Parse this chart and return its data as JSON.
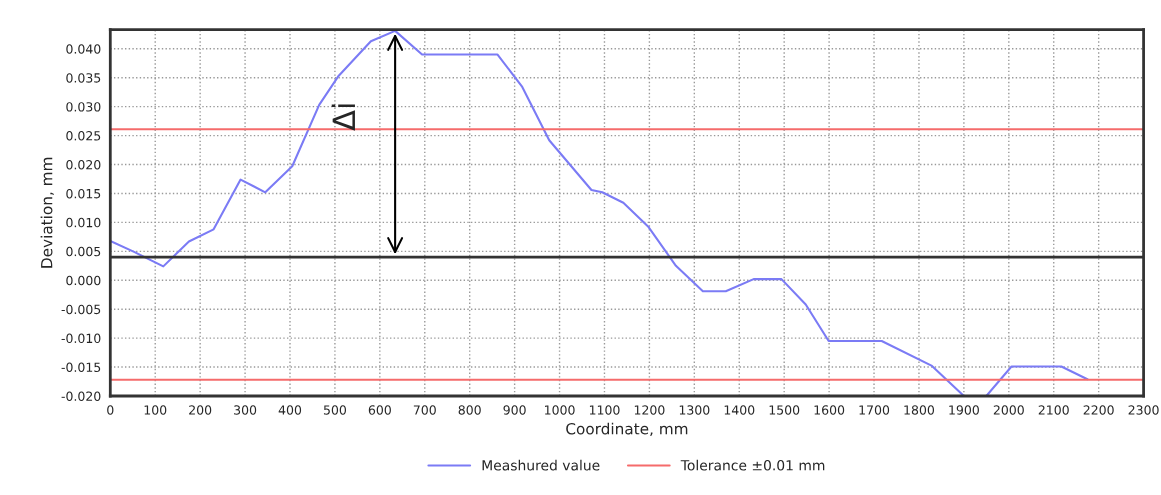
{
  "chart_data": {
    "type": "line",
    "xlabel": "Coordinate, mm",
    "ylabel": "Deviation, mm",
    "x": [
      0,
      53,
      118,
      175,
      230,
      290,
      345,
      405,
      465,
      507,
      580,
      634,
      694,
      862,
      917,
      977,
      1071,
      1095,
      1142,
      1197,
      1259,
      1319,
      1370,
      1432,
      1494,
      1548,
      1599,
      1717,
      1829,
      1900,
      1950,
      2006,
      2117,
      2175
    ],
    "series": [
      {
        "name": "Meashured value",
        "color": "#7b7bf5",
        "values": [
          0.0068,
          0.0049,
          0.0024,
          0.0067,
          0.0088,
          0.0174,
          0.0152,
          0.0197,
          0.0303,
          0.0352,
          0.0413,
          0.0431,
          0.039,
          0.039,
          0.0334,
          0.0242,
          0.0156,
          0.0152,
          0.0134,
          0.0093,
          0.0025,
          -0.0019,
          -0.0019,
          0.0002,
          0.0002,
          -0.0042,
          -0.0105,
          -0.0105,
          -0.0148,
          -0.02,
          -0.02,
          -0.0149,
          -0.0149,
          -0.0171
        ]
      }
    ],
    "xlim": [
      0,
      2300
    ],
    "ylim": [
      -0.02,
      0.0433
    ],
    "xticks": [
      0,
      100,
      200,
      300,
      400,
      500,
      600,
      700,
      800,
      900,
      1000,
      1100,
      1200,
      1300,
      1400,
      1500,
      1600,
      1700,
      1800,
      1900,
      2000,
      2100,
      2200,
      2300
    ],
    "yticks": [
      {
        "value": -0.02,
        "label": "-0.020"
      },
      {
        "value": -0.015,
        "label": "-0.015"
      },
      {
        "value": -0.01,
        "label": "-0.010"
      },
      {
        "value": -0.005,
        "label": "-0.005"
      },
      {
        "value": 0,
        "label": "0.000"
      },
      {
        "value": 0.005,
        "label": "0.005"
      },
      {
        "value": 0.01,
        "label": "0.010"
      },
      {
        "value": 0.015,
        "label": "0.015"
      },
      {
        "value": 0.02,
        "label": "0.020"
      },
      {
        "value": 0.025,
        "label": "0.025"
      },
      {
        "value": 0.03,
        "label": "0.030"
      },
      {
        "value": 0.035,
        "label": "0.035"
      },
      {
        "value": 0.04,
        "label": "0.040"
      }
    ],
    "ref_lines": [
      {
        "axis": "y",
        "value": 0.004,
        "color": "#333333",
        "line_style": "solid"
      },
      {
        "axis": "y",
        "value": 0.0261,
        "color": "#f56b6b",
        "line_style": "solid",
        "label": "Tolerance ±0.01 mm"
      },
      {
        "axis": "y",
        "value": -0.0172,
        "color": "#f56b6b",
        "line_style": "solid"
      }
    ],
    "annotations": [
      "Δi"
    ],
    "grid": true,
    "legend": "bottom",
    "marker": "none",
    "line_style": "solid"
  }
}
